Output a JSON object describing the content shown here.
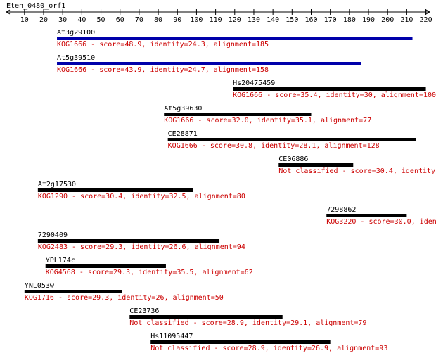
{
  "header": {
    "title": "Eten_0480_orf1"
  },
  "axis": {
    "xlim": [
      0.5,
      222
    ],
    "xticks": [
      10,
      20,
      30,
      40,
      50,
      60,
      70,
      80,
      90,
      100,
      110,
      120,
      130,
      140,
      150,
      160,
      170,
      180,
      190,
      200,
      210,
      220
    ]
  },
  "hits": [
    {
      "name": "At3g29100",
      "start": 27,
      "end": 213,
      "color": "#0000aa",
      "label": "KOG1666 - score=48.9, identity=24.3, alignment=185"
    },
    {
      "name": "At5g39510",
      "start": 27,
      "end": 186,
      "color": "#0000aa",
      "label": "KOG1666 - score=43.9, identity=24.7, alignment=158"
    },
    {
      "name": "Hs20475459",
      "start": 119,
      "end": 220,
      "color": "#000000",
      "label": "KOG1666 - score=35.4, identity=30, alignment=100"
    },
    {
      "name": "At5g39630",
      "start": 83,
      "end": 160,
      "color": "#000000",
      "label": "KOG1666 - score=32.0, identity=35.1, alignment=77"
    },
    {
      "name": "CE28871",
      "start": 85,
      "end": 215,
      "color": "#000000",
      "label": "KOG1666 - score=30.8, identity=28.1, alignment=128"
    },
    {
      "name": "CE06886",
      "start": 143,
      "end": 182,
      "color": "#000000",
      "label": "Not classified - score=30.4, identity"
    },
    {
      "name": "At2g17530",
      "start": 17,
      "end": 98,
      "color": "#000000",
      "label": "KOG1290 - score=30.4, identity=32.5, alignment=80"
    },
    {
      "name": "7298862",
      "start": 168,
      "end": 210,
      "color": "#000000",
      "label": "KOG3220 - score=30.0, iden"
    },
    {
      "name": "7290409",
      "start": 17,
      "end": 112,
      "color": "#000000",
      "label": "KOG2483 - score=29.3, identity=26.6, alignment=94"
    },
    {
      "name": "YPL174c",
      "start": 21,
      "end": 84,
      "color": "#000000",
      "label": "KOG4568 - score=29.3, identity=35.5, alignment=62"
    },
    {
      "name": "YNL053w",
      "start": 10,
      "end": 61,
      "color": "#000000",
      "label": "KOG1716 - score=29.3, identity=26, alignment=50"
    },
    {
      "name": "CE23736",
      "start": 65,
      "end": 145,
      "color": "#000000",
      "label": "Not classified - score=28.9, identity=29.1, alignment=79"
    },
    {
      "name": "Hs11095447",
      "start": 76,
      "end": 170,
      "color": "#000000",
      "label": "Not classified - score=28.9, identity=26.9, alignment=93"
    }
  ]
}
